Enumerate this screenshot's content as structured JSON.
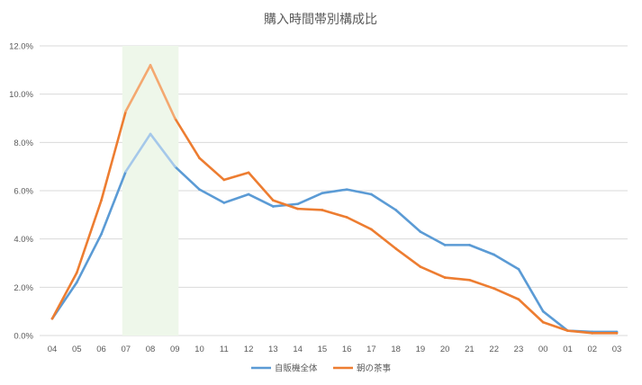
{
  "chart_data": {
    "type": "line",
    "title": "購入時間帯別構成比",
    "xlabel": "",
    "ylabel": "",
    "categories": [
      "04",
      "05",
      "06",
      "07",
      "08",
      "09",
      "10",
      "11",
      "12",
      "13",
      "14",
      "15",
      "16",
      "17",
      "18",
      "19",
      "20",
      "21",
      "22",
      "23",
      "00",
      "01",
      "02",
      "03"
    ],
    "ylim": [
      0,
      12
    ],
    "yticks": [
      0,
      2,
      4,
      6,
      8,
      10,
      12
    ],
    "ytick_labels": [
      "0.0%",
      "2.0%",
      "4.0%",
      "6.0%",
      "8.0%",
      "10.0%",
      "12.0%"
    ],
    "grid": true,
    "highlight": {
      "from": "07",
      "to": "09",
      "color": "#EEF7EA"
    },
    "legend_position": "bottom-center",
    "series": [
      {
        "name": "自販機全体",
        "color": "#5B9BD5",
        "highlight_color": "#A5C8EA",
        "values": [
          0.7,
          2.2,
          4.2,
          6.8,
          8.35,
          7.0,
          6.05,
          5.5,
          5.85,
          5.35,
          5.45,
          5.9,
          6.05,
          5.85,
          5.2,
          4.3,
          3.75,
          3.75,
          3.35,
          2.75,
          1.0,
          0.2,
          0.15,
          0.15
        ]
      },
      {
        "name": "朝の茶事",
        "color": "#ED7D31",
        "highlight_color": "#F4A870",
        "values": [
          0.7,
          2.6,
          5.6,
          9.3,
          11.2,
          9.0,
          7.35,
          6.45,
          6.75,
          5.6,
          5.25,
          5.2,
          4.9,
          4.4,
          3.6,
          2.85,
          2.4,
          2.3,
          1.95,
          1.5,
          0.55,
          0.2,
          0.1,
          0.1
        ]
      }
    ]
  }
}
